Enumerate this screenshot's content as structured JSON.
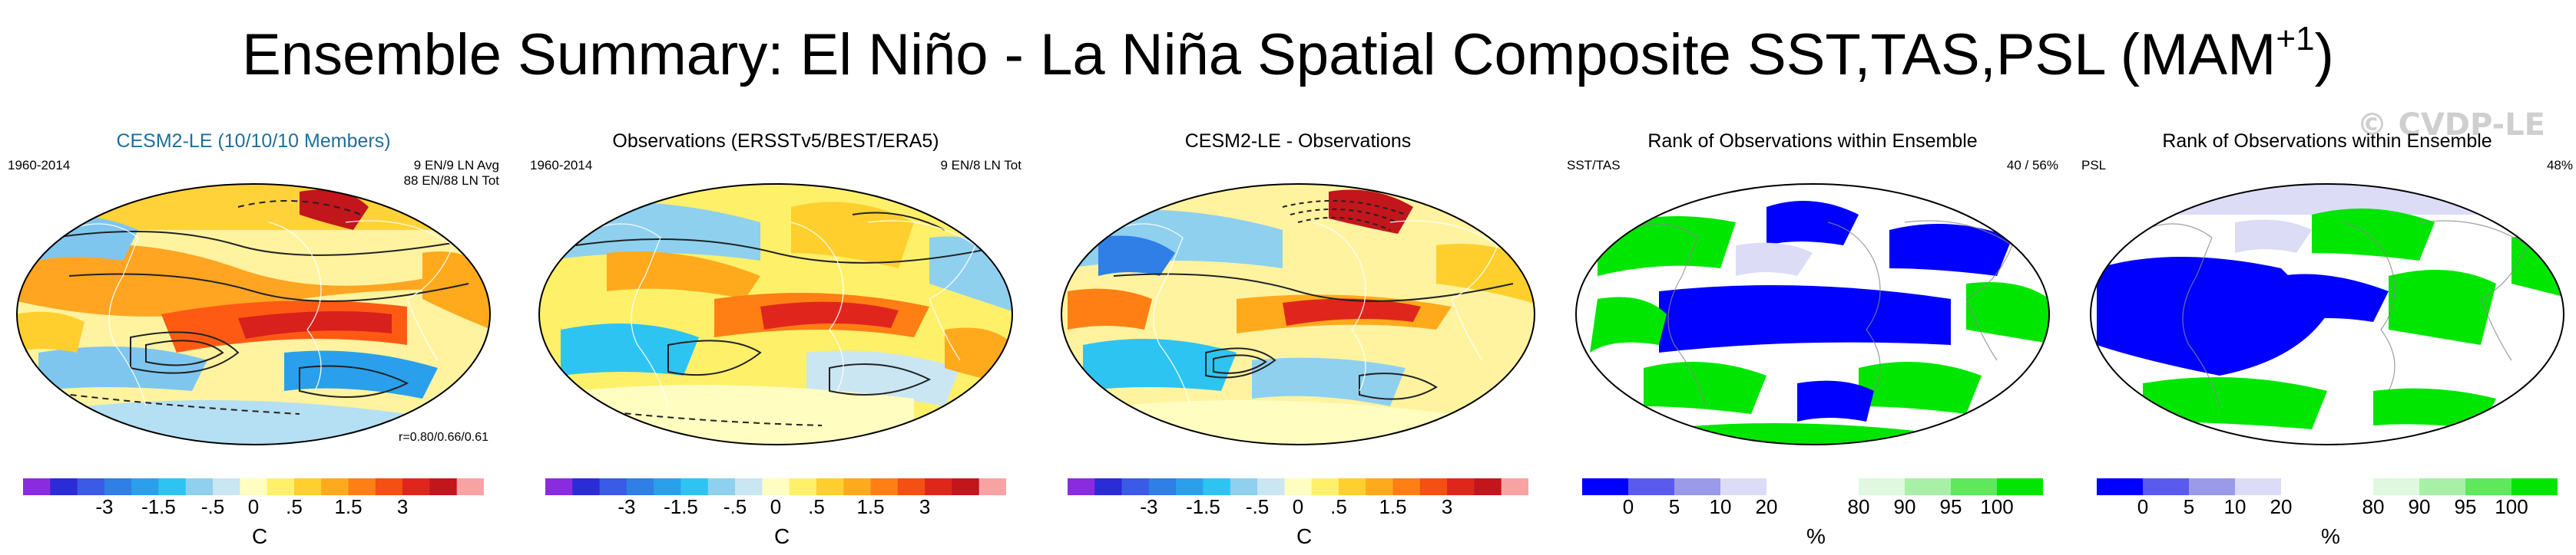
{
  "title": {
    "main": "Ensemble Summary: El Niño - La Niña Spatial Composite SST,TAS,PSL (MAM",
    "sup": "+1",
    "close": ")"
  },
  "watermark": "© CVDP-LE",
  "panels": [
    {
      "title": "CESM2-LE (10/10/10 Members)",
      "left_text": "1960-2014",
      "right_lines": [
        "9 EN/9 LN Avg",
        "88 EN/88 LN Tot"
      ],
      "corner": "r=0.80/0.66/0.61",
      "map_type": "anomaly"
    },
    {
      "title": "Observations (ERSSTv5/BEST/ERA5)",
      "left_text": "1960-2014",
      "right_lines": [
        "9 EN/8 LN Tot",
        ""
      ],
      "corner": "",
      "map_type": "anomaly"
    },
    {
      "title": "CESM2-LE - Observations",
      "left_text": "",
      "right_lines": [
        "",
        ""
      ],
      "corner": "",
      "map_type": "anomaly"
    },
    {
      "title": "Rank of Observations within Ensemble",
      "left_text": "SST/TAS",
      "right_lines": [
        "40 /  56%",
        ""
      ],
      "corner": "",
      "map_type": "rank"
    },
    {
      "title": "Rank of Observations within Ensemble",
      "left_text": "PSL",
      "right_lines": [
        "48%",
        ""
      ],
      "corner": "",
      "map_type": "rank"
    }
  ],
  "anomaly_colorbar": {
    "unit": "C",
    "labels": [
      "-3",
      "-1.5",
      "-.5",
      "0",
      ".5",
      "1.5",
      "3"
    ],
    "colors": [
      "#8a2be2",
      "#2b2bd8",
      "#3a5ae8",
      "#2f7fe6",
      "#2aa0ec",
      "#2ec4f2",
      "#8fd0ef",
      "#c9e6f2",
      "#fffdc0",
      "#fff06a",
      "#ffcf2e",
      "#ffaa1c",
      "#ff7f14",
      "#f54f12",
      "#e0261c",
      "#c2151c",
      "#f7a3a3"
    ]
  },
  "rank_colorbar": {
    "unit": "%",
    "labels": [
      "0",
      "5",
      "10",
      "20",
      "80",
      "90",
      "95",
      "100"
    ],
    "colors": [
      "#0000ff",
      "#5a5af0",
      "#9a9ae8",
      "#dcdcf7",
      "#ffffff",
      "#ffffff",
      "#dff8df",
      "#a8f0a8",
      "#5ee85e",
      "#00e600"
    ]
  }
}
